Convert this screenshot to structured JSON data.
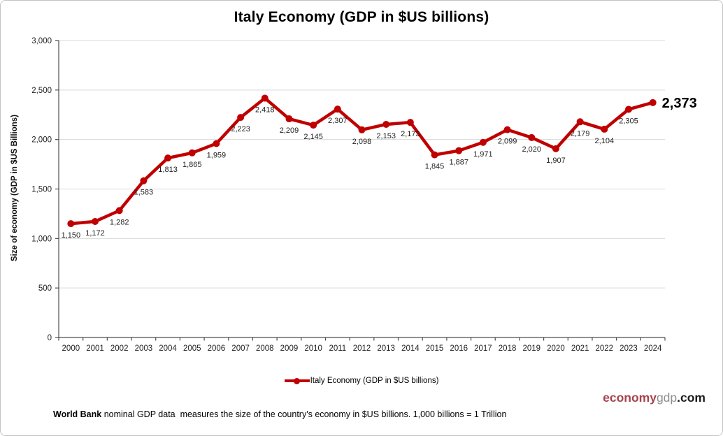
{
  "chart_data": {
    "type": "line",
    "title": "Italy Economy (GDP in $US billions)",
    "ylabel": "Size of economy (GDP in $US Billions)",
    "xlabel": "",
    "categories": [
      "2000",
      "2001",
      "2002",
      "2003",
      "2004",
      "2005",
      "2006",
      "2007",
      "2008",
      "2009",
      "2010",
      "2011",
      "2012",
      "2013",
      "2014",
      "2015",
      "2016",
      "2017",
      "2018",
      "2019",
      "2020",
      "2021",
      "2022",
      "2023",
      "2024"
    ],
    "series": [
      {
        "name": "Italy Economy (GDP in $US billions)",
        "values": [
          1150,
          1172,
          1282,
          1583,
          1813,
          1865,
          1959,
          2223,
          2418,
          2209,
          2145,
          2307,
          2098,
          2153,
          2173,
          1845,
          1887,
          1971,
          2099,
          2020,
          1907,
          2179,
          2104,
          2305,
          2373
        ],
        "color": "#c00000"
      }
    ],
    "ylim": [
      0,
      3000
    ],
    "ytick_step": 500,
    "ytick_labels": [
      "0",
      "500",
      "1,000",
      "1,500",
      "2,000",
      "2,500",
      "3,000"
    ],
    "grid": true,
    "gridline_color": "#d9d9d9",
    "axis_color": "#4d4d4d",
    "data_labels_shown": true,
    "last_point_emphasized": true,
    "legend_position": "bottom"
  },
  "legend": {
    "label": "Italy Economy (GDP in $US billions)",
    "marker_color": "#c00000"
  },
  "footer": {
    "bold": "World Bank",
    "rest": " nominal GDP data  measures the size of the country's economy in $US billions. 1,000 billions = 1 Trillion"
  },
  "brand": {
    "economy": "economy",
    "gdp": "gdp",
    "com": ".com",
    "economy_color": "#a6434c",
    "gdp_color": "#8f8f8f",
    "com_color": "#1a1a1a"
  }
}
